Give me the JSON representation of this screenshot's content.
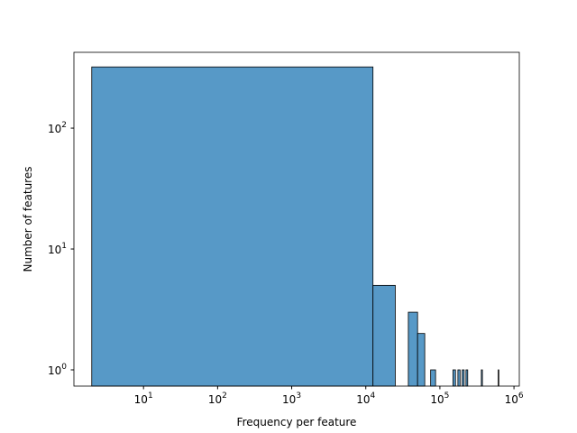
{
  "chart_data": {
    "type": "histogram",
    "x_label": "Frequency per feature",
    "y_label": "Number of features",
    "bins": [
      2,
      12502,
      25002,
      37502,
      50002,
      62502,
      75002,
      87502,
      100002,
      112502,
      125002,
      137502,
      150002,
      162502,
      175002,
      187502,
      200002,
      212502,
      225002,
      237502,
      250002,
      262502,
      275002,
      287502,
      300002,
      312502,
      325002,
      337502,
      350002,
      362502,
      375002,
      387502,
      400002,
      412502,
      425002,
      437502,
      450002,
      462502,
      475002,
      487502,
      500002,
      512502,
      525002,
      537502,
      550002,
      562502,
      575002,
      587502,
      600002,
      612502,
      625002
    ],
    "values": [
      321,
      5,
      0,
      3,
      2,
      0,
      1,
      0,
      0,
      0,
      0,
      0,
      1,
      0,
      1,
      0,
      1,
      0,
      1,
      0,
      0,
      0,
      0,
      0,
      0,
      0,
      0,
      0,
      0,
      1,
      0,
      0,
      0,
      0,
      0,
      0,
      0,
      0,
      0,
      0,
      0,
      0,
      0,
      0,
      0,
      0,
      0,
      0,
      0,
      1
    ],
    "color": "#5799c7",
    "xscale": "log",
    "yscale": "log",
    "xlim": [
      1.15,
      1180000
    ],
    "ylim": [
      0.734,
      424
    ],
    "xticks": [
      {
        "value": 10,
        "label": "10^1"
      },
      {
        "value": 100,
        "label": "10^2"
      },
      {
        "value": 1000,
        "label": "10^3"
      },
      {
        "value": 10000,
        "label": "10^4"
      },
      {
        "value": 100000,
        "label": "10^5"
      },
      {
        "value": 1000000,
        "label": "10^6"
      }
    ],
    "yticks": [
      {
        "value": 1,
        "label": "10^0"
      },
      {
        "value": 10,
        "label": "10^1"
      },
      {
        "value": 100,
        "label": "10^2"
      }
    ]
  }
}
